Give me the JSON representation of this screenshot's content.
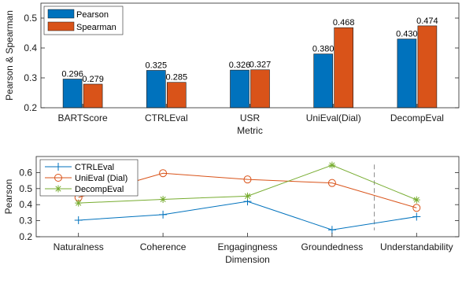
{
  "chart_data": [
    {
      "type": "bar",
      "xlabel": "Metric",
      "ylabel": "Pearson & Spearman",
      "categories": [
        "BARTScore",
        "CTRLEval",
        "USR",
        "UniEval(Dial)",
        "DecompEval"
      ],
      "ylim": [
        0.2,
        0.55
      ],
      "yticks": [
        "0.2",
        "0.3",
        "0.4",
        "0.5"
      ],
      "grid": false,
      "legend_position": "top-left",
      "series": [
        {
          "name": "Pearson",
          "color": "#0072BD",
          "values": [
            0.296,
            0.325,
            0.326,
            0.38,
            0.43
          ],
          "labels": [
            "0.296",
            "0.325",
            "0.326",
            "0.380",
            "0.430"
          ]
        },
        {
          "name": "Spearman",
          "color": "#D95319",
          "values": [
            0.279,
            0.285,
            0.327,
            0.468,
            0.474
          ],
          "labels": [
            "0.279",
            "0.285",
            "0.327",
            "0.468",
            "0.474"
          ]
        }
      ]
    },
    {
      "type": "line",
      "xlabel": "Dimension",
      "ylabel": "Pearson",
      "categories": [
        "Naturalness",
        "Coherence",
        "Engagingness",
        "Groundedness",
        "Understandability"
      ],
      "ylim": [
        0.2,
        0.7
      ],
      "yticks": [
        "0.2",
        "0.3",
        "0.4",
        "0.5",
        "0.6"
      ],
      "grid": false,
      "legend_position": "top-left",
      "vline_between": [
        3,
        4
      ],
      "series": [
        {
          "name": "CTRLEval",
          "color": "#0072BD",
          "marker": "plus",
          "values": [
            0.303,
            0.338,
            0.42,
            0.243,
            0.325
          ]
        },
        {
          "name": "UniEval (Dial)",
          "color": "#D95319",
          "marker": "circle",
          "values": [
            0.445,
            0.596,
            0.557,
            0.535,
            0.38
          ]
        },
        {
          "name": "DecompEval",
          "color": "#77AC30",
          "marker": "star",
          "values": [
            0.41,
            0.433,
            0.453,
            0.646,
            0.43
          ]
        }
      ]
    }
  ]
}
